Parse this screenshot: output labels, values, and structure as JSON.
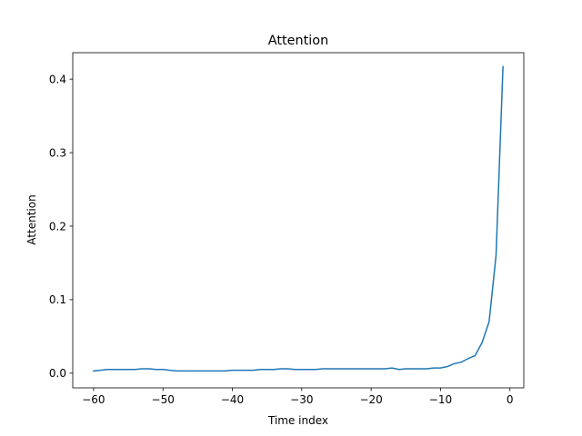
{
  "chart_data": {
    "type": "line",
    "title": "Attention",
    "xlabel": "Time index",
    "ylabel": "Attention",
    "xlim": [
      -63,
      2
    ],
    "ylim": [
      -0.02,
      0.436
    ],
    "xticks": [
      -60,
      -50,
      -40,
      -30,
      -20,
      -10,
      0
    ],
    "yticks": [
      0.0,
      0.1,
      0.2,
      0.3,
      0.4
    ],
    "xtick_labels": [
      "−60",
      "−50",
      "−40",
      "−30",
      "−20",
      "−10",
      "0"
    ],
    "ytick_labels": [
      "0.0",
      "0.1",
      "0.2",
      "0.3",
      "0.4"
    ],
    "grid": false,
    "legend": "none",
    "series": [
      {
        "color": "#1f77b4",
        "x": [
          -60,
          -59,
          -58,
          -57,
          -56,
          -55,
          -54,
          -53,
          -52,
          -51,
          -50,
          -49,
          -48,
          -47,
          -46,
          -45,
          -44,
          -43,
          -42,
          -41,
          -40,
          -39,
          -38,
          -37,
          -36,
          -35,
          -34,
          -33,
          -32,
          -31,
          -30,
          -29,
          -28,
          -27,
          -26,
          -25,
          -24,
          -23,
          -22,
          -21,
          -20,
          -19,
          -18,
          -17,
          -16,
          -15,
          -14,
          -13,
          -12,
          -11,
          -10,
          -9,
          -8,
          -7,
          -6,
          -5,
          -4,
          -3,
          -2,
          -1
        ],
        "y": [
          0.003,
          0.004,
          0.005,
          0.005,
          0.005,
          0.005,
          0.005,
          0.006,
          0.006,
          0.005,
          0.005,
          0.004,
          0.003,
          0.003,
          0.003,
          0.003,
          0.003,
          0.003,
          0.003,
          0.003,
          0.004,
          0.004,
          0.004,
          0.004,
          0.005,
          0.005,
          0.005,
          0.006,
          0.006,
          0.005,
          0.005,
          0.005,
          0.005,
          0.006,
          0.006,
          0.006,
          0.006,
          0.006,
          0.006,
          0.006,
          0.006,
          0.006,
          0.006,
          0.007,
          0.005,
          0.006,
          0.006,
          0.006,
          0.006,
          0.007,
          0.007,
          0.009,
          0.013,
          0.015,
          0.02,
          0.024,
          0.042,
          0.07,
          0.16,
          0.417
        ]
      }
    ]
  }
}
